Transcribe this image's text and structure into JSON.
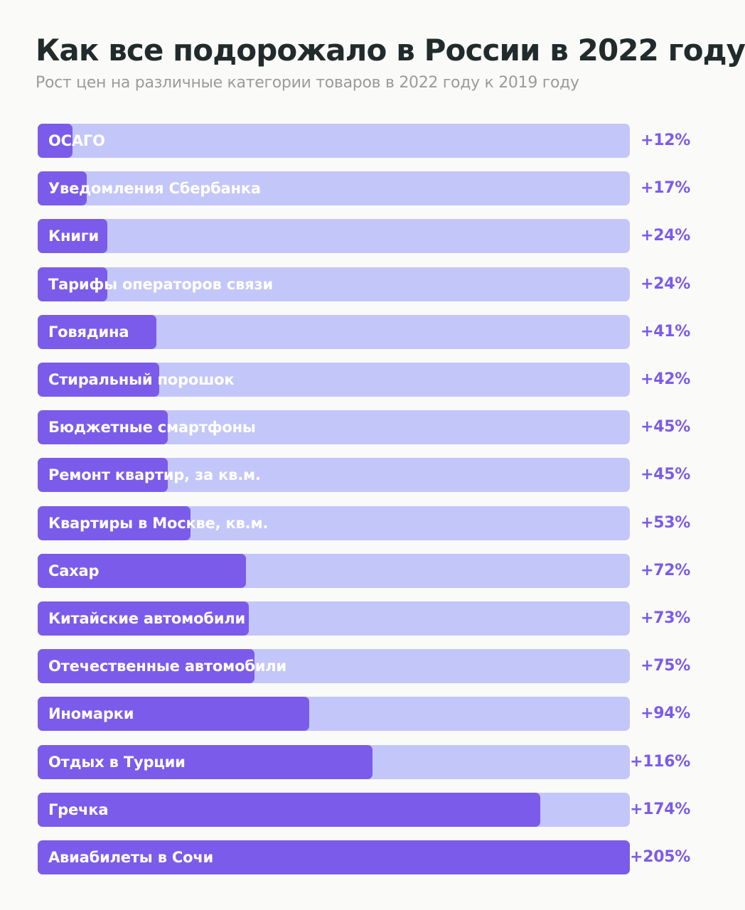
{
  "chart_data": {
    "type": "bar",
    "orientation": "horizontal",
    "title": "Как все подорожало в России в 2022 году",
    "subtitle": "Рост цен на различные категории товаров в 2022 году к 2019 году",
    "categories": [
      "ОСАГО",
      "Уведомления Сбербанка",
      "Книги",
      "Тарифы операторов связи",
      "Говядина",
      "Стиральный порошок",
      "Бюджетные смартфоны",
      "Ремонт квартир, за кв.м.",
      "Квартиры в Москве, кв.м.",
      "Сахар",
      "Китайские автомобили",
      "Отечественные автомобили",
      "Иномарки",
      "Отдых в Турции",
      "Гречка",
      "Авиабилеты в Сочи"
    ],
    "values": [
      12,
      17,
      24,
      24,
      41,
      42,
      45,
      45,
      53,
      72,
      73,
      75,
      94,
      116,
      174,
      205
    ],
    "value_labels": [
      "+12%",
      "+17%",
      "+24%",
      "+24%",
      "+41%",
      "+42%",
      "+45%",
      "+45%",
      "+53%",
      "+72%",
      "+73%",
      "+75%",
      "+94%",
      "+116%",
      "+174%",
      "+205%"
    ],
    "xlim": [
      0,
      205
    ],
    "grid": false,
    "legend": "none",
    "colors": {
      "bar_fill": "#7b5bea",
      "bar_track": "#c3c6f9",
      "value_text": "#7b5bea",
      "label_text": "#ffffff",
      "title_text": "#222b2c",
      "subtitle_text": "#9b9b9b",
      "background": "#fafaf9"
    }
  }
}
